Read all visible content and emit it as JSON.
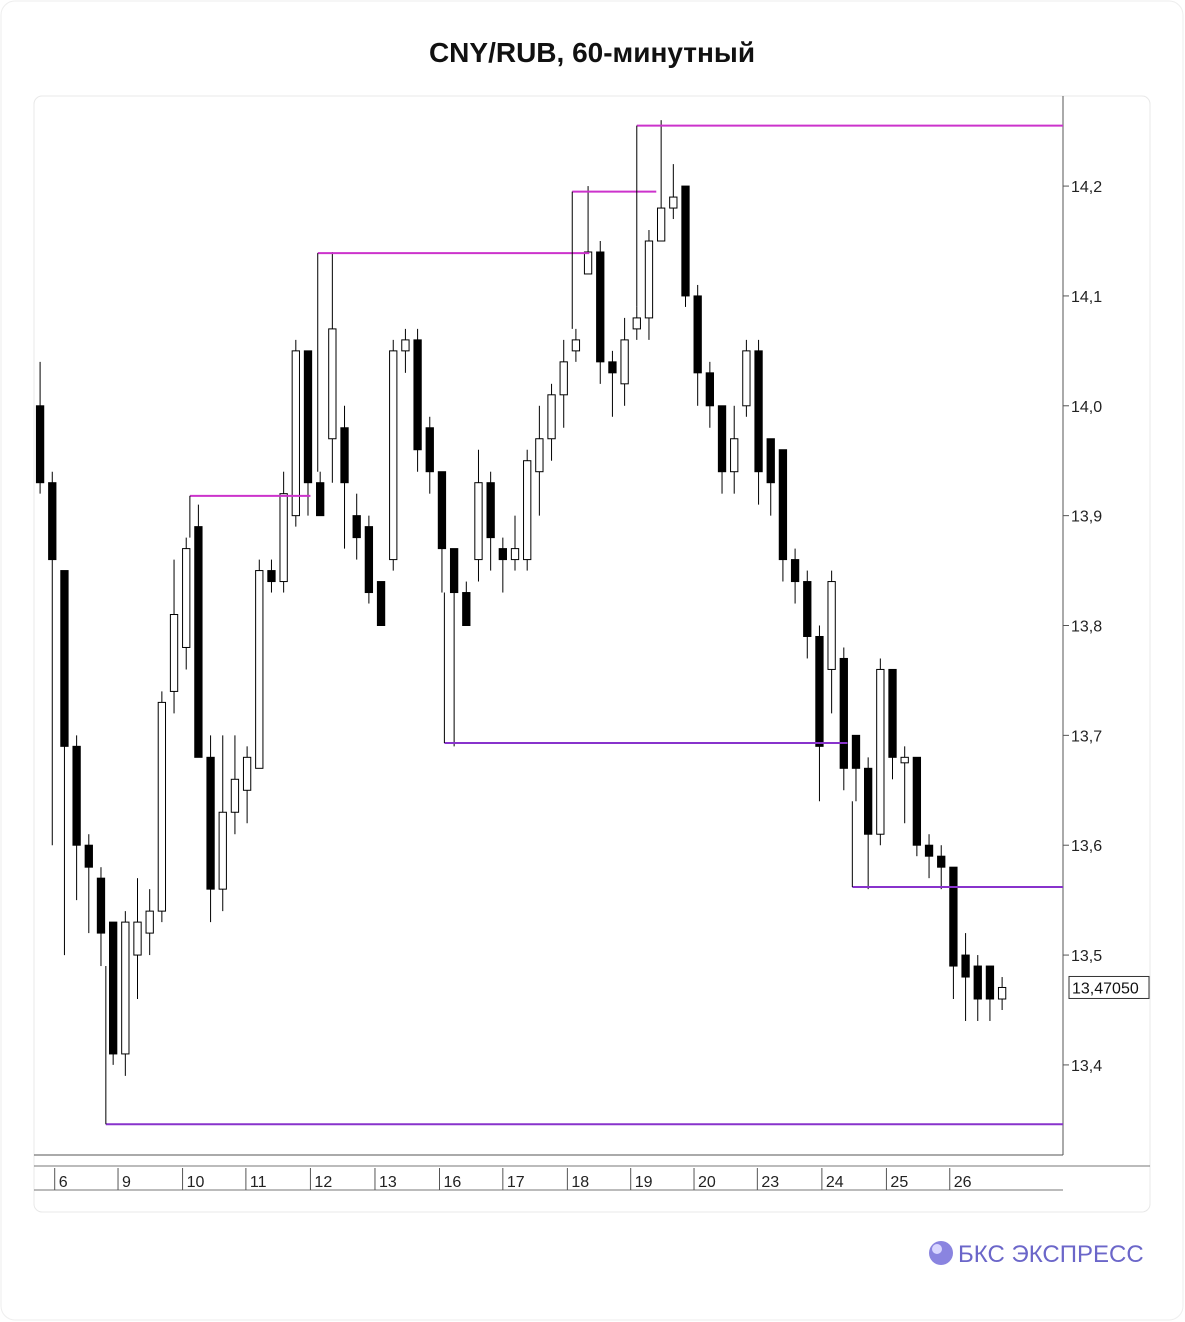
{
  "chart_data": {
    "type": "candlestick",
    "title": "CNY/RUB, 60-минутный",
    "brand": "БКС ЭКСПРЕСС",
    "ylim": [
      13.318,
      14.282
    ],
    "xlim": [
      -0.5,
      84
    ],
    "yticks": [
      {
        "value": 13.4,
        "label": "13,4"
      },
      {
        "value": 13.5,
        "label": "13,5"
      },
      {
        "value": 13.6,
        "label": "13,6"
      },
      {
        "value": 13.7,
        "label": "13,7"
      },
      {
        "value": 13.8,
        "label": "13,8"
      },
      {
        "value": 13.9,
        "label": "13,9"
      },
      {
        "value": 14.0,
        "label": "14,0"
      },
      {
        "value": 14.1,
        "label": "14,1"
      },
      {
        "value": 14.2,
        "label": "14,2"
      }
    ],
    "xticks": [
      {
        "value": 1.2,
        "label": "6"
      },
      {
        "value": 6.4,
        "label": "9"
      },
      {
        "value": 11.7,
        "label": "10"
      },
      {
        "value": 16.9,
        "label": "11"
      },
      {
        "value": 22.2,
        "label": "12"
      },
      {
        "value": 27.5,
        "label": "13"
      },
      {
        "value": 32.8,
        "label": "16"
      },
      {
        "value": 38.0,
        "label": "17"
      },
      {
        "value": 43.3,
        "label": "18"
      },
      {
        "value": 48.5,
        "label": "19"
      },
      {
        "value": 53.7,
        "label": "20"
      },
      {
        "value": 58.9,
        "label": "23"
      },
      {
        "value": 64.2,
        "label": "24"
      },
      {
        "value": 69.5,
        "label": "25"
      },
      {
        "value": 74.7,
        "label": "26"
      }
    ],
    "last_price": 13.4705,
    "last_price_label": "13,47050",
    "up_color": "#ffffff",
    "down_color": "#000000",
    "candles": [
      [
        14.0,
        14.04,
        13.92,
        13.93
      ],
      [
        13.93,
        13.94,
        13.6,
        13.86
      ],
      [
        13.85,
        13.85,
        13.5,
        13.69
      ],
      [
        13.69,
        13.7,
        13.55,
        13.6
      ],
      [
        13.6,
        13.61,
        13.52,
        13.58
      ],
      [
        13.57,
        13.58,
        13.49,
        13.52
      ],
      [
        13.53,
        13.53,
        13.4,
        13.41
      ],
      [
        13.41,
        13.54,
        13.39,
        13.53
      ],
      [
        13.5,
        13.57,
        13.46,
        13.53
      ],
      [
        13.52,
        13.56,
        13.5,
        13.54
      ],
      [
        13.54,
        13.74,
        13.53,
        13.73
      ],
      [
        13.74,
        13.86,
        13.72,
        13.81
      ],
      [
        13.78,
        13.88,
        13.76,
        13.87
      ],
      [
        13.89,
        13.91,
        13.68,
        13.68
      ],
      [
        13.68,
        13.7,
        13.53,
        13.56
      ],
      [
        13.56,
        13.7,
        13.54,
        13.63
      ],
      [
        13.63,
        13.7,
        13.61,
        13.66
      ],
      [
        13.65,
        13.69,
        13.62,
        13.68
      ],
      [
        13.67,
        13.86,
        13.67,
        13.85
      ],
      [
        13.85,
        13.86,
        13.83,
        13.84
      ],
      [
        13.84,
        13.94,
        13.83,
        13.92
      ],
      [
        13.9,
        14.06,
        13.89,
        14.05
      ],
      [
        14.05,
        14.05,
        13.9,
        13.93
      ],
      [
        13.93,
        13.94,
        13.9,
        13.9
      ],
      [
        13.97,
        14.14,
        13.93,
        14.07
      ],
      [
        13.98,
        14.0,
        13.87,
        13.93
      ],
      [
        13.9,
        13.92,
        13.86,
        13.88
      ],
      [
        13.89,
        13.9,
        13.82,
        13.83
      ],
      [
        13.84,
        13.84,
        13.8,
        13.8
      ],
      [
        13.86,
        14.06,
        13.85,
        14.05
      ],
      [
        14.05,
        14.07,
        14.03,
        14.06
      ],
      [
        14.06,
        14.07,
        13.94,
        13.96
      ],
      [
        13.98,
        13.99,
        13.92,
        13.94
      ],
      [
        13.94,
        13.94,
        13.83,
        13.87
      ],
      [
        13.87,
        13.87,
        13.69,
        13.83
      ],
      [
        13.83,
        13.84,
        13.8,
        13.8
      ],
      [
        13.86,
        13.96,
        13.84,
        13.93
      ],
      [
        13.93,
        13.94,
        13.85,
        13.88
      ],
      [
        13.87,
        13.88,
        13.83,
        13.86
      ],
      [
        13.86,
        13.9,
        13.85,
        13.87
      ],
      [
        13.86,
        13.96,
        13.85,
        13.95
      ],
      [
        13.94,
        14.0,
        13.9,
        13.97
      ],
      [
        13.97,
        14.02,
        13.95,
        14.01
      ],
      [
        14.01,
        14.06,
        13.98,
        14.04
      ],
      [
        14.05,
        14.07,
        14.04,
        14.06
      ],
      [
        14.12,
        14.2,
        14.12,
        14.14
      ],
      [
        14.14,
        14.15,
        14.02,
        14.04
      ],
      [
        14.04,
        14.05,
        13.99,
        14.03
      ],
      [
        14.02,
        14.08,
        14.0,
        14.06
      ],
      [
        14.07,
        14.09,
        14.06,
        14.08
      ],
      [
        14.08,
        14.16,
        14.06,
        14.15
      ],
      [
        14.15,
        14.26,
        14.15,
        14.18
      ],
      [
        14.18,
        14.22,
        14.17,
        14.19
      ],
      [
        14.2,
        14.2,
        14.09,
        14.1
      ],
      [
        14.1,
        14.11,
        14.0,
        14.03
      ],
      [
        14.03,
        14.04,
        13.98,
        14.0
      ],
      [
        14.0,
        14.0,
        13.92,
        13.94
      ],
      [
        13.94,
        14.0,
        13.92,
        13.97
      ],
      [
        14.0,
        14.06,
        13.99,
        14.05
      ],
      [
        14.05,
        14.06,
        13.91,
        13.94
      ],
      [
        13.97,
        13.97,
        13.9,
        13.93
      ],
      [
        13.96,
        13.96,
        13.84,
        13.86
      ],
      [
        13.86,
        13.87,
        13.82,
        13.84
      ],
      [
        13.84,
        13.85,
        13.77,
        13.79
      ],
      [
        13.79,
        13.8,
        13.64,
        13.69
      ],
      [
        13.76,
        13.85,
        13.72,
        13.84
      ],
      [
        13.77,
        13.78,
        13.65,
        13.67
      ],
      [
        13.7,
        13.7,
        13.64,
        13.67
      ],
      [
        13.67,
        13.68,
        13.56,
        13.61
      ],
      [
        13.61,
        13.77,
        13.6,
        13.76
      ],
      [
        13.76,
        13.76,
        13.66,
        13.68
      ],
      [
        13.675,
        13.69,
        13.62,
        13.68
      ],
      [
        13.68,
        13.68,
        13.59,
        13.6
      ],
      [
        13.6,
        13.61,
        13.57,
        13.59
      ],
      [
        13.59,
        13.6,
        13.56,
        13.58
      ],
      [
        13.58,
        13.58,
        13.46,
        13.49
      ],
      [
        13.5,
        13.52,
        13.44,
        13.48
      ],
      [
        13.49,
        13.5,
        13.44,
        13.46
      ],
      [
        13.49,
        13.49,
        13.44,
        13.46
      ],
      [
        13.46,
        13.48,
        13.45,
        13.4705
      ]
    ],
    "levels": [
      {
        "value": 13.918,
        "start": 12.3,
        "end": 22.2,
        "color": "#cc33cc"
      },
      {
        "value": 14.139,
        "start": 22.8,
        "end": 45.1,
        "color": "#cc33cc"
      },
      {
        "value": 14.195,
        "start": 43.7,
        "end": 50.6,
        "color": "#cc33cc"
      },
      {
        "value": 14.255,
        "start": 49.0,
        "end": 84,
        "color": "#cc33cc"
      },
      {
        "value": 13.693,
        "start": 33.2,
        "end": 66.3,
        "color": "#8833cc"
      },
      {
        "value": 13.562,
        "start": 66.7,
        "end": 84,
        "color": "#8833cc"
      },
      {
        "value": 13.346,
        "start": 5.4,
        "end": 84,
        "color": "#8833cc"
      }
    ]
  }
}
